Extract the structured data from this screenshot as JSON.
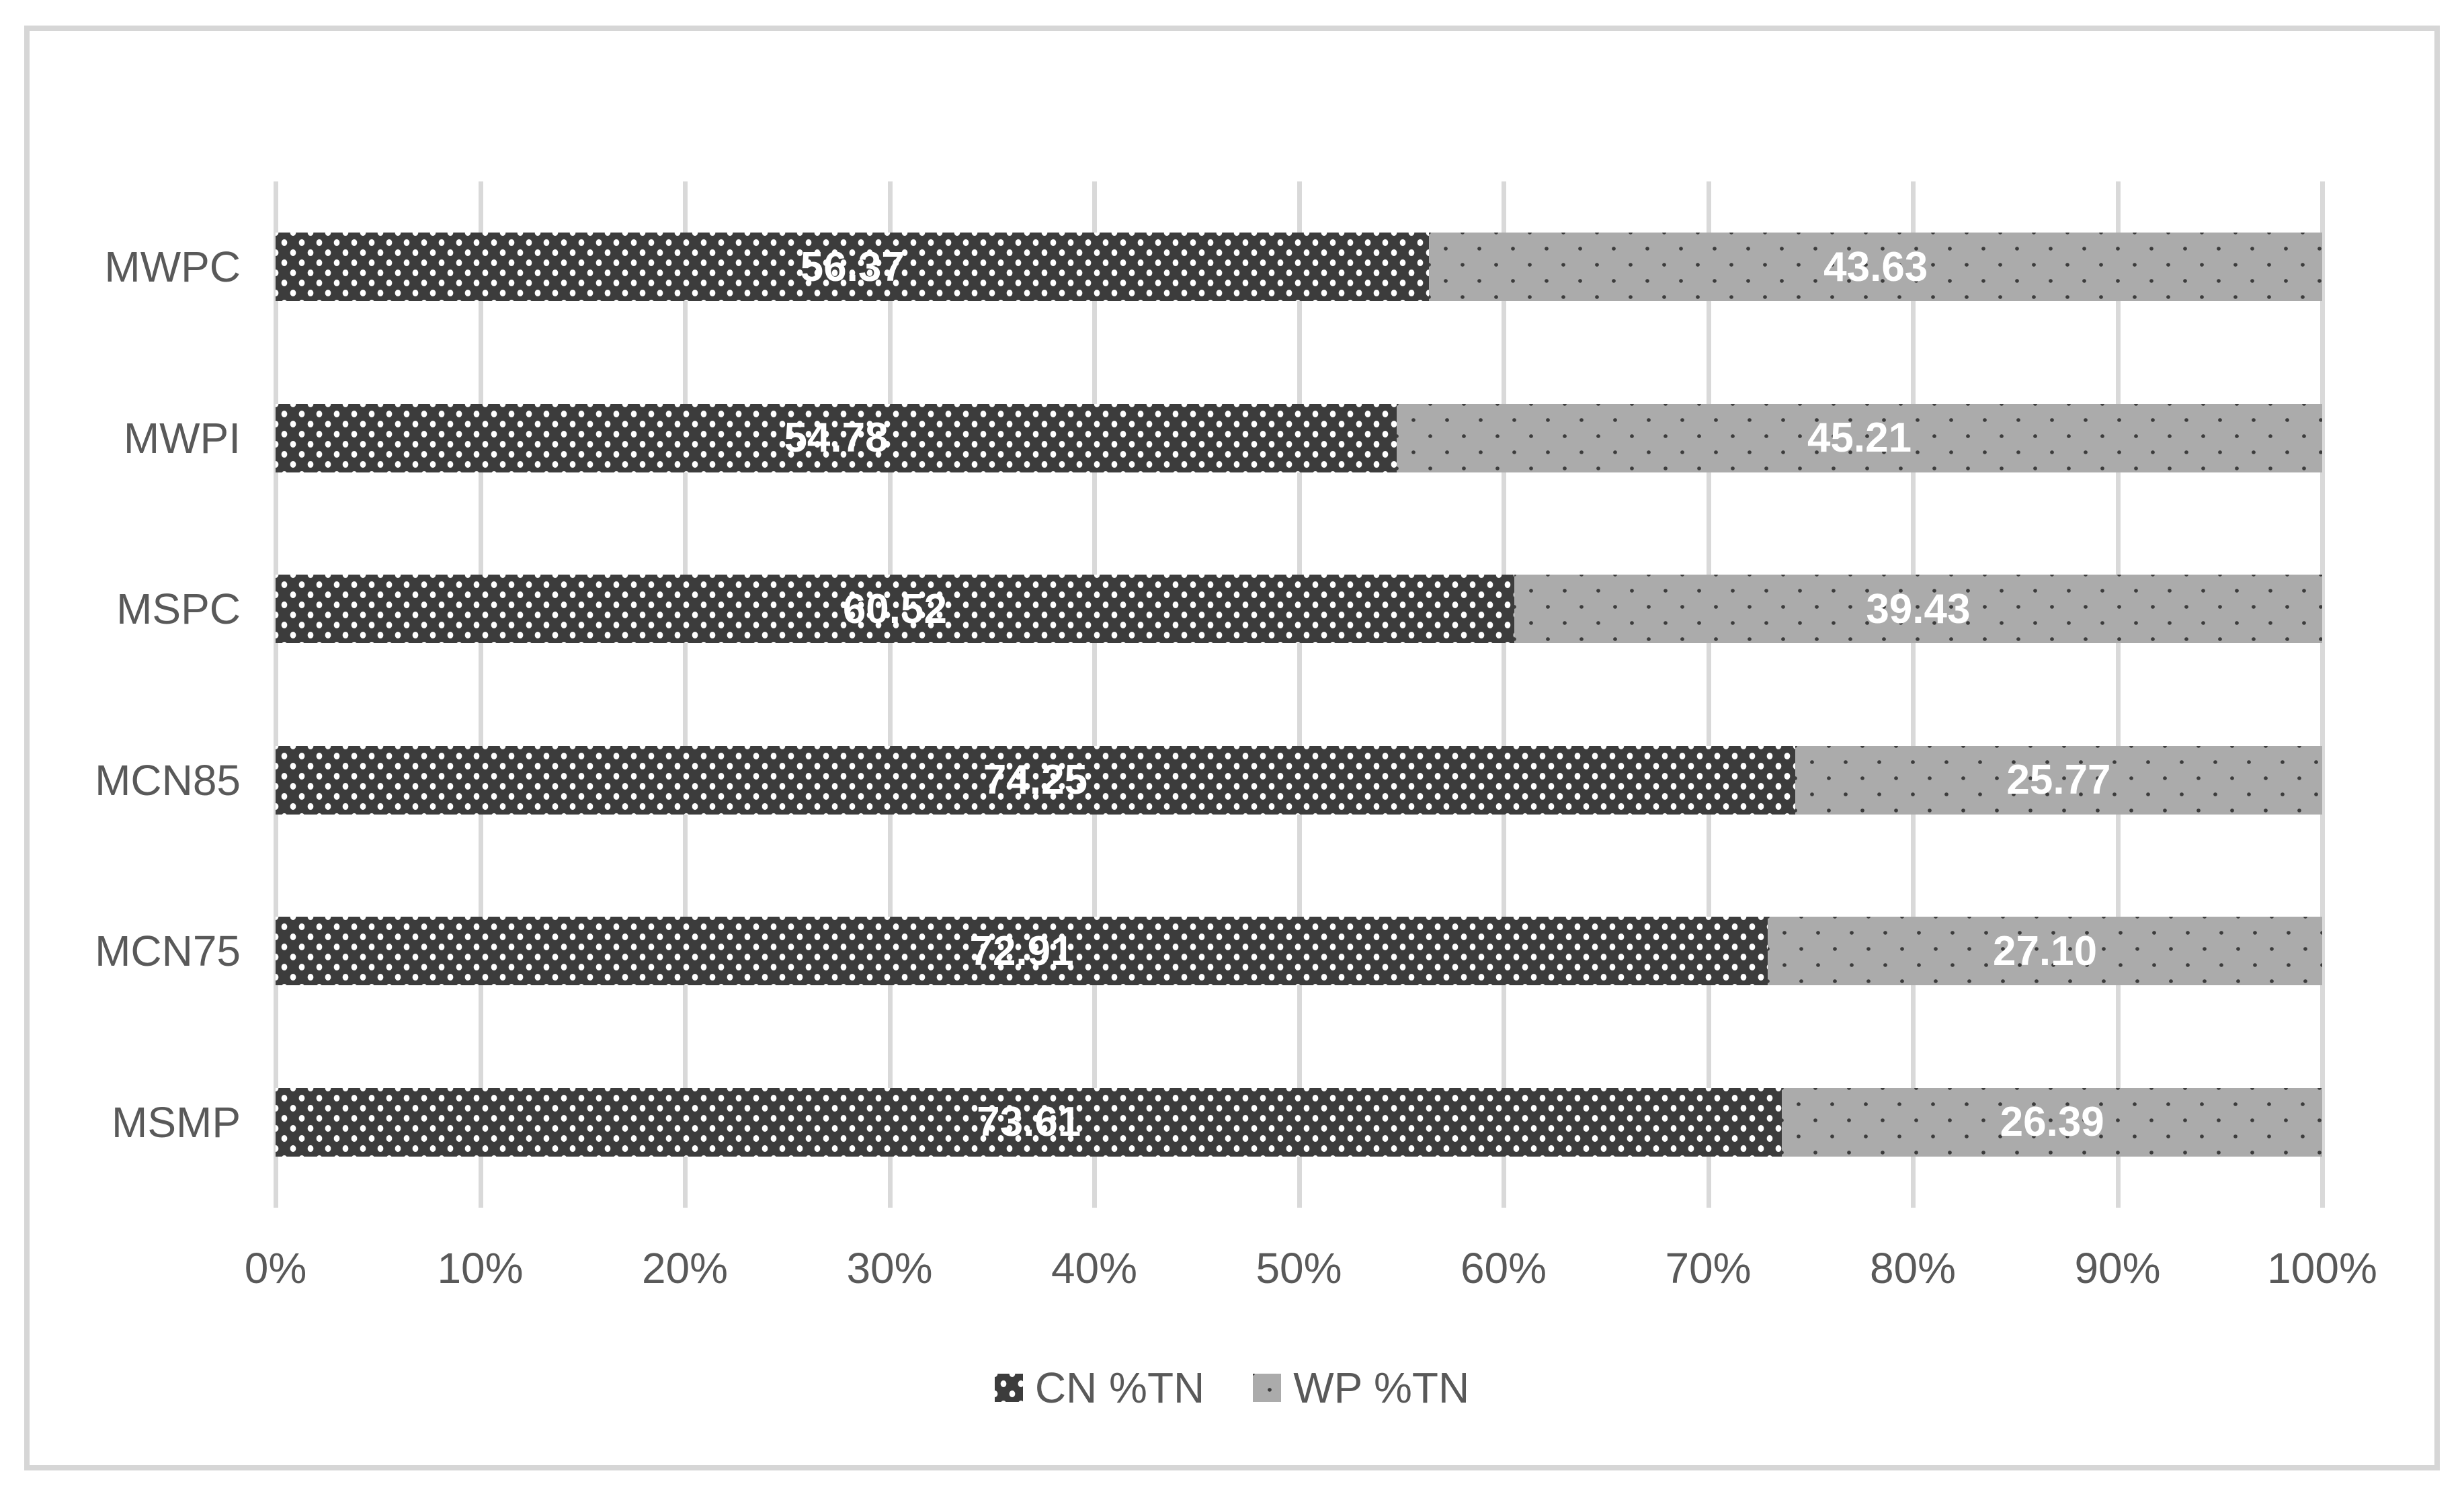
{
  "chart_data": {
    "type": "bar",
    "orientation": "horizontal",
    "stacked": true,
    "categories": [
      "MWPC",
      "MWPI",
      "MSPC",
      "MCN85",
      "MCN75",
      "MSMP"
    ],
    "series": [
      {
        "name": "CN %TN",
        "values": [
          56.37,
          54.78,
          60.52,
          74.25,
          72.91,
          73.61
        ],
        "labels": [
          "56.37",
          "54.78",
          "60.52",
          "74.25",
          "72.91",
          "73.61"
        ],
        "color": "#3c3c3c",
        "pattern": "dense-white-dots"
      },
      {
        "name": "WP %TN",
        "values": [
          43.63,
          45.21,
          39.43,
          25.77,
          27.1,
          26.39
        ],
        "labels": [
          "43.63",
          "45.21",
          "39.43",
          "25.77",
          "27.10",
          "26.39"
        ],
        "color": "#ababab",
        "pattern": "sparse-dark-dots"
      }
    ],
    "x_ticks": [
      "0%",
      "10%",
      "20%",
      "30%",
      "40%",
      "50%",
      "60%",
      "70%",
      "80%",
      "90%",
      "100%"
    ],
    "xlim": [
      0,
      100
    ],
    "grid": "vertical-major",
    "gridline_color": "#d9d9d9",
    "axis_text_color": "#595959",
    "value_label_color": "#ffffff",
    "frame_border_color": "#d6d6d6",
    "legend_position": "bottom",
    "title": "",
    "xlabel": "",
    "ylabel": ""
  }
}
